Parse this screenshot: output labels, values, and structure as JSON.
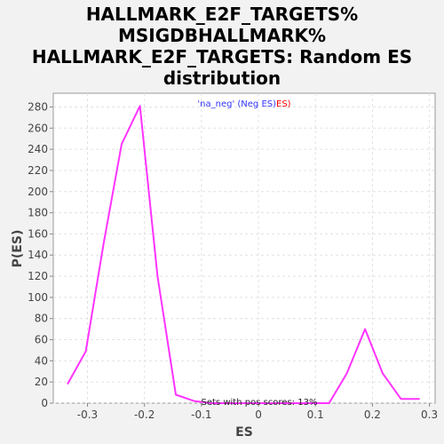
{
  "chart_data": {
    "type": "line",
    "title_lines": [
      "HALLMARK_E2F_TARGETS%",
      "MSIGDBHALLMARK%",
      "HALLMARK_E2F_TARGETS: Random ES",
      "distribution"
    ],
    "xlabel": "ES",
    "ylabel": "P(ES)",
    "xlim": [
      -0.36,
      0.31
    ],
    "ylim": [
      0,
      293
    ],
    "xticks": [
      -0.3,
      -0.2,
      -0.1,
      0.0,
      0.1,
      0.2,
      0.3
    ],
    "xtick_labels": [
      "-0.3",
      "-0.2",
      "-0.1",
      "0",
      "0.1",
      "0.2",
      "0.3"
    ],
    "yticks": [
      0,
      20,
      40,
      60,
      80,
      100,
      120,
      140,
      160,
      180,
      200,
      220,
      240,
      260,
      280
    ],
    "ytick_labels": [
      "0",
      "20",
      "40",
      "60",
      "80",
      "100",
      "120",
      "140",
      "160",
      "180",
      "200",
      "220",
      "240",
      "260",
      "280"
    ],
    "grid": true,
    "series": [
      {
        "name": "'na_neg' (Neg ES)",
        "color": "#ff33ff",
        "x": [
          -0.335,
          -0.303,
          -0.272,
          -0.24,
          -0.208,
          -0.177,
          -0.145,
          -0.113,
          -0.082,
          -0.05,
          -0.018,
          0.013,
          0.045,
          0.077,
          0.108,
          0.124,
          0.155,
          0.187,
          0.218,
          0.25,
          0.283
        ],
        "y": [
          18,
          49,
          150,
          245,
          281,
          120,
          8,
          2,
          0,
          0,
          0,
          0,
          0,
          0,
          0,
          0,
          28,
          70,
          28,
          4,
          4
        ]
      }
    ],
    "legend": {
      "position": "top-center",
      "prefix": "'na_neg' (Neg ES)",
      "suffix": "ES)",
      "prefix_color": "#3333ff",
      "suffix_color": "#ff0000"
    },
    "annotation": "Sets with pos scores: 13%"
  }
}
